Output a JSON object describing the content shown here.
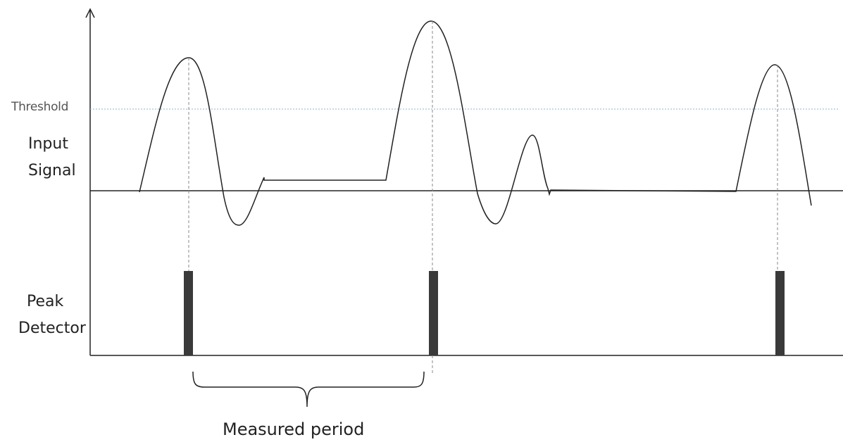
{
  "labels": {
    "threshold": "Threshold",
    "input_signal_line1": "Input",
    "input_signal_line2": "Signal",
    "peak_detector_line1": "Peak",
    "peak_detector_line2": "Detector",
    "measured_period": "Measured period"
  },
  "colors": {
    "ink": "#222222",
    "threshold_line": "#8fb3cc",
    "guide_line": "#888888",
    "pulse": "#3a3a3a"
  }
}
